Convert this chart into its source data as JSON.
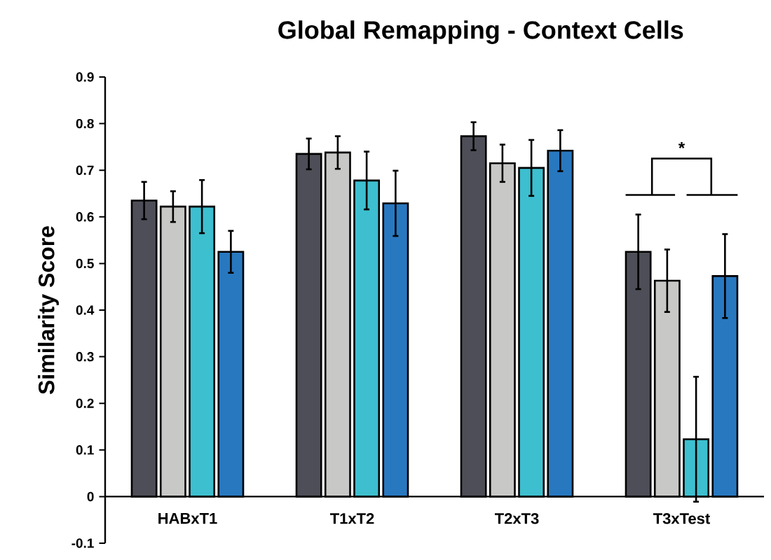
{
  "chart_data": {
    "type": "bar",
    "title": "Global Remapping - Context Cells",
    "ylabel": "Similarity Score",
    "categories": [
      "HABxT1",
      "T1xT2",
      "T2xT3",
      "T3xTest"
    ],
    "series": [
      {
        "color": "#4d4e57",
        "values": [
          0.635,
          0.735,
          0.773,
          0.525
        ],
        "errors": [
          0.04,
          0.033,
          0.03,
          0.08
        ]
      },
      {
        "color": "#c8c8c6",
        "values": [
          0.622,
          0.738,
          0.715,
          0.463
        ],
        "errors": [
          0.033,
          0.035,
          0.04,
          0.067
        ]
      },
      {
        "color": "#3dbfcf",
        "values": [
          0.622,
          0.678,
          0.705,
          0.123
        ],
        "errors": [
          0.057,
          0.062,
          0.06,
          0.134
        ]
      },
      {
        "color": "#2878c0",
        "values": [
          0.525,
          0.629,
          0.742,
          0.473
        ],
        "errors": [
          0.045,
          0.07,
          0.044,
          0.09
        ]
      }
    ],
    "ylim": [
      -0.1,
      0.9
    ],
    "yticks": [
      -0.1,
      0,
      0.1,
      0.2,
      0.3,
      0.4,
      0.5,
      0.6,
      0.7,
      0.8,
      0.9
    ],
    "annotations": [
      "*"
    ]
  }
}
